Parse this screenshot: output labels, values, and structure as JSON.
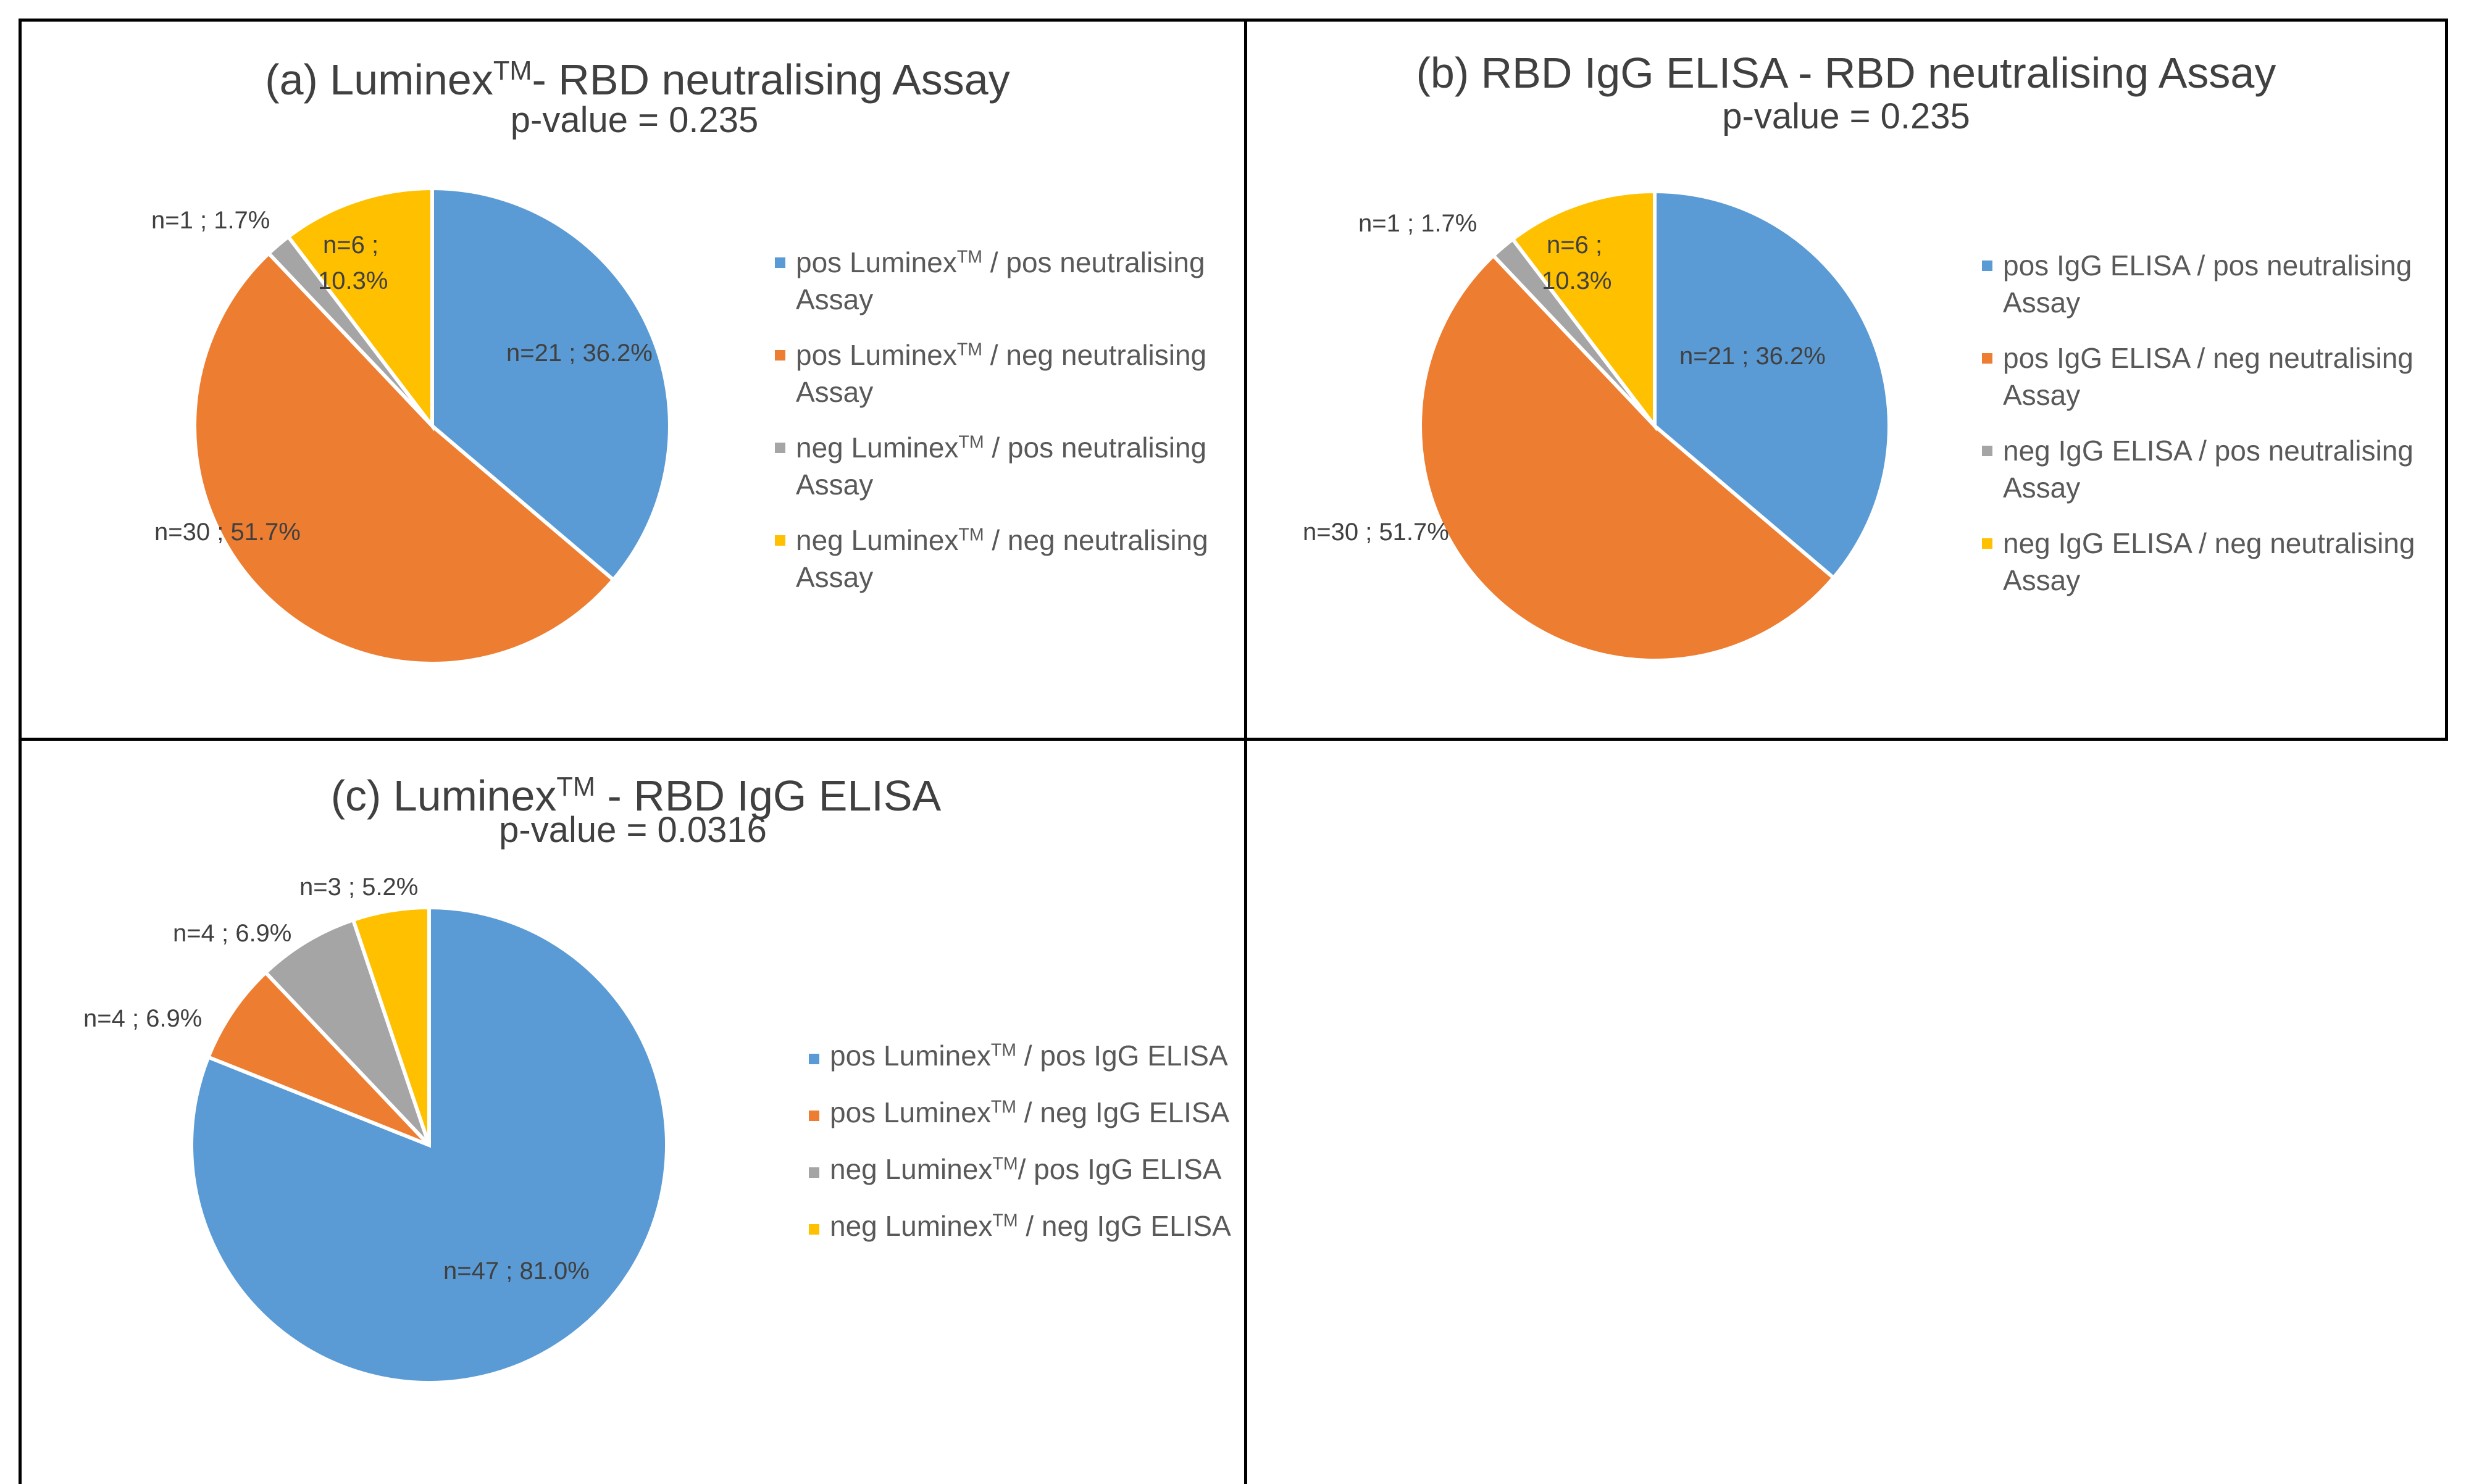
{
  "charts": [
    {
      "id": "a",
      "title_main": "(a) Luminex",
      "title_sup": "TM",
      "title_rest": "- RBD neutralising Assay",
      "subtitle": "p-value  = 0.235",
      "chart_data": {
        "type": "pie",
        "title": "(a) LuminexTM- RBD neutralising Assay",
        "subtitle": "p-value = 0.235",
        "slices": [
          {
            "label": "pos LuminexTM / pos neutralising Assay",
            "n": 21,
            "percent": 36.2,
            "color": "#5B9BD5",
            "data_label": "n=21 ; 36.2%"
          },
          {
            "label": "pos LuminexTM / neg neutralising Assay",
            "n": 30,
            "percent": 51.7,
            "color": "#ED7D31",
            "data_label": "n=30 ; 51.7%"
          },
          {
            "label": "neg LuminexTM / pos neutralising Assay",
            "n": 1,
            "percent": 1.7,
            "color": "#A5A5A5",
            "data_label": "n=1 ; 1.7%"
          },
          {
            "label": "neg LuminexTM / neg neutralising Assay",
            "n": 6,
            "percent": 10.3,
            "color": "#FFC000",
            "data_label": "n=6 ; 10.3%"
          }
        ]
      },
      "legend": [
        {
          "pre": "pos Luminex",
          "sup": "TM",
          "post": " / pos neutralising",
          "line2": "Assay",
          "color": "#5B9BD5"
        },
        {
          "pre": "pos Luminex",
          "sup": "TM",
          "post": " / neg neutralising",
          "line2": "Assay",
          "color": "#ED7D31"
        },
        {
          "pre": "neg Luminex",
          "sup": "TM",
          "post": " / pos neutralising",
          "line2": "Assay",
          "color": "#A5A5A5"
        },
        {
          "pre": "neg Luminex",
          "sup": "TM",
          "post": " / neg neutralising",
          "line2": "Assay",
          "color": "#FFC000"
        }
      ]
    },
    {
      "id": "b",
      "title_main": "(b) RBD IgG ELISA - RBD neutralising Assay",
      "title_sup": "",
      "title_rest": "",
      "subtitle": "p-value = 0.235",
      "chart_data": {
        "type": "pie",
        "title": "(b) RBD IgG ELISA - RBD neutralising Assay",
        "subtitle": "p-value = 0.235",
        "slices": [
          {
            "label": "pos IgG ELISA / pos neutralising Assay",
            "n": 21,
            "percent": 36.2,
            "color": "#5B9BD5",
            "data_label": "n=21 ; 36.2%"
          },
          {
            "label": "pos IgG ELISA / neg neutralising Assay",
            "n": 30,
            "percent": 51.7,
            "color": "#ED7D31",
            "data_label": "n=30 ; 51.7%"
          },
          {
            "label": "neg IgG ELISA / pos neutralising Assay",
            "n": 1,
            "percent": 1.7,
            "color": "#A5A5A5",
            "data_label": "n=1 ; 1.7%"
          },
          {
            "label": "neg IgG ELISA / neg neutralising Assay",
            "n": 6,
            "percent": 10.3,
            "color": "#FFC000",
            "data_label": "n=6 ; 10.3%"
          }
        ]
      },
      "legend": [
        {
          "pre": "pos IgG ELISA / pos neutralising",
          "sup": "",
          "post": "",
          "line2": "Assay",
          "color": "#5B9BD5"
        },
        {
          "pre": "pos IgG ELISA / neg neutralising",
          "sup": "",
          "post": "",
          "line2": "Assay",
          "color": "#ED7D31"
        },
        {
          "pre": "neg IgG ELISA / pos neutralising",
          "sup": "",
          "post": "",
          "line2": "Assay",
          "color": "#A5A5A5"
        },
        {
          "pre": "neg IgG ELISA / neg neutralising",
          "sup": "",
          "post": "",
          "line2": "Assay",
          "color": "#FFC000"
        }
      ]
    },
    {
      "id": "c",
      "title_main": "(c) Luminex",
      "title_sup": "TM",
      "title_rest": " - RBD IgG ELISA",
      "subtitle": "p-value  = 0.0316",
      "chart_data": {
        "type": "pie",
        "title": "(c) LuminexTM - RBD IgG ELISA",
        "subtitle": "p-value = 0.0316",
        "slices": [
          {
            "label": "pos LuminexTM / pos IgG ELISA",
            "n": 47,
            "percent": 81.0,
            "color": "#5B9BD5",
            "data_label": "n=47 ; 81.0%"
          },
          {
            "label": "pos LuminexTM / neg IgG ELISA",
            "n": 4,
            "percent": 6.9,
            "color": "#ED7D31",
            "data_label": "n=4 ; 6.9%"
          },
          {
            "label": "neg LuminexTM/ pos IgG ELISA",
            "n": 4,
            "percent": 6.9,
            "color": "#A5A5A5",
            "data_label": "n=4 ; 6.9%"
          },
          {
            "label": "neg LuminexTM / neg IgG ELISA",
            "n": 3,
            "percent": 5.2,
            "color": "#FFC000",
            "data_label": "n=3 ; 5.2%"
          }
        ]
      },
      "legend": [
        {
          "pre": "pos Luminex",
          "sup": "TM",
          "post": " / pos IgG ELISA",
          "line2": "",
          "color": "#5B9BD5"
        },
        {
          "pre": "pos Luminex",
          "sup": "TM",
          "post": " / neg IgG ELISA",
          "line2": "",
          "color": "#ED7D31"
        },
        {
          "pre": "neg Luminex",
          "sup": "TM",
          "post": "/ pos IgG ELISA",
          "line2": "",
          "color": "#A5A5A5"
        },
        {
          "pre": "neg Luminex",
          "sup": "TM",
          "post": " / neg IgG ELISA",
          "line2": "",
          "color": "#FFC000"
        }
      ]
    }
  ]
}
